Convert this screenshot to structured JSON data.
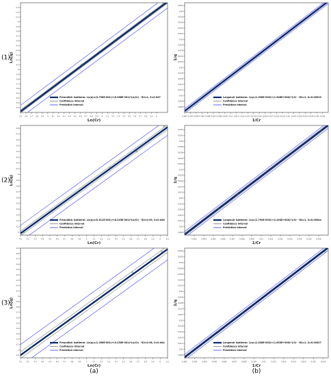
{
  "figure": {
    "row_labels": [
      "(1)",
      "(2)",
      "(3)"
    ],
    "col_labels": [
      "(a)",
      "(b)"
    ],
    "legend_confidence": "Confidence interval",
    "legend_prediction": "Prediction interval",
    "colors": {
      "fit": "#0b2a6f",
      "confidence": "#7a7a7a",
      "prediction": "#3a3aff",
      "points": "#3a7a3a",
      "axis": "#333333"
    }
  },
  "chart_data": [
    {
      "type": "line",
      "id": "r1-freundlich",
      "xlabel": "Ln(Cr)",
      "ylabel": "Ln(q)",
      "xlim": [
        3.5,
        6.2
      ],
      "ylim": [
        3.1,
        5.4
      ],
      "xticks": [
        3.5,
        3.6,
        3.7,
        3.8,
        3.9,
        4.0,
        4.1,
        4.2,
        4.3,
        4.4,
        4.5,
        4.6,
        4.7,
        4.8,
        4.9,
        5.0,
        5.1,
        5.2,
        5.3,
        5.4,
        5.5,
        5.6,
        5.7,
        5.8,
        5.9,
        6.0
      ],
      "xtick_labels": [
        "3.5",
        "3.6",
        "3.7",
        "3.8",
        "3.9",
        "4",
        "4.1",
        "4.2",
        "4.3",
        "4.4",
        "4.5",
        "4.6",
        "4.7",
        "4.8",
        "4.9",
        "5",
        "5.1",
        "5.2",
        "5.3",
        "5.4",
        "5.5",
        "5.6",
        "5.7",
        "5.8",
        "5.9",
        "6"
      ],
      "yticks": [
        3.2,
        3.3,
        3.4,
        3.5,
        3.6,
        3.7,
        3.8,
        3.9,
        4.0,
        4.1,
        4.2,
        4.3,
        4.4,
        4.5,
        4.6,
        4.7,
        4.8,
        4.9,
        5.0,
        5.1,
        5.2,
        5.3
      ],
      "ytick_labels": [
        "3.2",
        "3.3",
        "3.4",
        "3.5",
        "3.6",
        "3.7",
        "3.8",
        "3.9",
        "4",
        "4.1",
        "4.2",
        "4.3",
        "4.4",
        "4.5",
        "4.6",
        "4.7",
        "4.8",
        "4.9",
        "5",
        "5.1",
        "5.2",
        "5.3"
      ],
      "fit": {
        "x": [
          3.5,
          6.2
        ],
        "y": [
          3.12,
          5.42
        ]
      },
      "confidence_offset": 0.03,
      "prediction_offset": 0.13,
      "points": {
        "x": [
          3.62,
          4.62,
          5.22,
          5.88,
          6.12
        ],
        "y": [
          3.22,
          4.1,
          4.6,
          5.17,
          5.38
        ]
      },
      "legend_fit": "Freundlich Isotherm: Ln(q)=(3.796E-001)+(8.368E-001)*Ln(Cr) - R2=1, S=0.047"
    },
    {
      "type": "line",
      "id": "r1-langmuir",
      "xlabel": "1/Cr",
      "ylabel": "1/q",
      "xlim": [
        0.002,
        0.027
      ],
      "ylim": [
        0.004,
        0.043
      ],
      "xticks": [
        0.002,
        0.003,
        0.004,
        0.005,
        0.006,
        0.007,
        0.008,
        0.009,
        0.01,
        0.011,
        0.012,
        0.013,
        0.014,
        0.015,
        0.016,
        0.017,
        0.018,
        0.019,
        0.02,
        0.021,
        0.022,
        0.023,
        0.024,
        0.025,
        0.026
      ],
      "xtick_labels": [
        "0.002",
        "0.003",
        "0.004",
        "0.005",
        "0.006",
        "0.007",
        "0.008",
        "0.009",
        "0.01",
        "0.011",
        "0.012",
        "0.013",
        "0.014",
        "0.015",
        "0.016",
        "0.017",
        "0.018",
        "0.019",
        "0.02",
        "0.021",
        "0.022",
        "0.023",
        "0.024",
        "0.025",
        "0.026"
      ],
      "yticks": [
        0.006,
        0.008,
        0.01,
        0.012,
        0.014,
        0.016,
        0.018,
        0.02,
        0.022,
        0.024,
        0.026,
        0.028,
        0.03,
        0.032,
        0.034,
        0.036,
        0.038,
        0.04,
        0.042
      ],
      "ytick_labels": [
        "0.006",
        "0.008",
        "0.01",
        "0.012",
        "0.014",
        "0.016",
        "0.018",
        "0.02",
        "0.022",
        "0.024",
        "0.026",
        "0.028",
        "0.03",
        "0.032",
        "0.034",
        "0.036",
        "0.038",
        "0.04",
        "0.042"
      ],
      "fit": {
        "x": [
          0.002,
          0.027
        ],
        "y": [
          0.0045,
          0.0435
        ]
      },
      "confidence_offset": 0.0003,
      "prediction_offset": 0.0008,
      "points": {
        "x": [
          0.0045,
          0.0085,
          0.0185,
          0.0255
        ],
        "y": [
          0.0085,
          0.0147,
          0.0302,
          0.0412
        ]
      },
      "legend_fit": "Langmuir Isotherm: 1/q=(1.998E-003)+(1.548E+000)*1/Cr - R2=1, S=0.00029"
    },
    {
      "type": "line",
      "id": "r2-freundlich",
      "xlabel": "Ln(Cr)",
      "ylabel": "Ln(q)",
      "xlim": [
        4.1,
        6.1
      ],
      "ylim": [
        2.95,
        4.85
      ],
      "xticks": [
        4.1,
        4.2,
        4.3,
        4.4,
        4.5,
        4.6,
        4.7,
        4.8,
        4.9,
        5.0,
        5.1,
        5.2,
        5.3,
        5.4,
        5.5,
        5.6,
        5.7,
        5.8,
        5.9,
        6.0,
        6.1
      ],
      "xtick_labels": [
        "4.1",
        "4.2",
        "4.3",
        "4.4",
        "4.5",
        "4.6",
        "4.7",
        "4.8",
        "4.9",
        "5",
        "5.1",
        "5.2",
        "5.3",
        "5.4",
        "5.5",
        "5.6",
        "5.7",
        "5.8",
        "5.9",
        "6",
        "6.1"
      ],
      "yticks": [
        3.0,
        3.1,
        3.2,
        3.3,
        3.4,
        3.5,
        3.6,
        3.7,
        3.8,
        3.9,
        4.0,
        4.1,
        4.2,
        4.3,
        4.4,
        4.5,
        4.6,
        4.7,
        4.8
      ],
      "ytick_labels": [
        "3",
        "3.1",
        "3.2",
        "3.3",
        "3.4",
        "3.5",
        "3.6",
        "3.7",
        "3.8",
        "3.9",
        "4",
        "4.1",
        "4.2",
        "4.3",
        "4.4",
        "4.5",
        "4.6",
        "4.7",
        "4.8"
      ],
      "fit": {
        "x": [
          4.1,
          6.1
        ],
        "y": [
          2.98,
          4.82
        ]
      },
      "confidence_offset": 0.04,
      "prediction_offset": 0.14,
      "points": {
        "x": [
          4.15,
          4.88,
          5.32,
          5.68,
          6.05
        ],
        "y": [
          3.0,
          3.7,
          4.12,
          4.4,
          4.83
        ]
      },
      "legend_fit": "Freundlich Isotherm: Ln(q)=(5.511E-001)+(8.243E-001)*Ln(Cr) - R2=0.99, S=0.046"
    },
    {
      "type": "line",
      "id": "r2-langmuir",
      "xlabel": "1/Cr",
      "ylabel": "1/q",
      "xlim": [
        0.002,
        0.017
      ],
      "ylim": [
        0.007,
        0.0455
      ],
      "xticks": [
        0.003,
        0.004,
        0.005,
        0.006,
        0.007,
        0.008,
        0.009,
        0.01,
        0.011,
        0.012,
        0.013,
        0.014,
        0.015,
        0.016
      ],
      "xtick_labels": [
        "0.003",
        "0.004",
        "0.005",
        "0.006",
        "0.007",
        "0.008",
        "0.009",
        "0.01",
        "0.011",
        "0.012",
        "0.013",
        "0.014",
        "0.015",
        "0.016"
      ],
      "yticks": [
        0.008,
        0.01,
        0.012,
        0.014,
        0.016,
        0.018,
        0.02,
        0.022,
        0.024,
        0.026,
        0.028,
        0.03,
        0.032,
        0.034,
        0.036,
        0.038,
        0.04,
        0.042,
        0.044
      ],
      "ytick_labels": [
        "0.008",
        "0.01",
        "0.012",
        "0.014",
        "0.016",
        "0.018",
        "0.02",
        "0.022",
        "0.024",
        "0.026",
        "0.028",
        "0.03",
        "0.032",
        "0.034",
        "0.036",
        "0.038",
        "0.04",
        "0.042",
        "0.044"
      ],
      "fit": {
        "x": [
          0.002,
          0.017
        ],
        "y": [
          0.0072,
          0.0456
        ]
      },
      "confidence_offset": 0.0005,
      "prediction_offset": 0.0011,
      "points": {
        "x": [
          0.0024,
          0.0055,
          0.0075,
          0.0162
        ],
        "y": [
          0.0084,
          0.0162,
          0.0213,
          0.0435
        ]
      },
      "legend_fit": "Langmuir Isotherm: 1/q=(1.790E-003)+(2.254E+000)*1/Cr - R2=1, S=0.00044"
    },
    {
      "type": "line",
      "id": "r3-freundlich",
      "xlabel": "Ln(Cr)",
      "ylabel": "Ln(q)",
      "xlim": [
        4.1,
        6.1
      ],
      "ylim": [
        2.85,
        4.9
      ],
      "xticks": [
        4.1,
        4.2,
        4.3,
        4.4,
        4.5,
        4.6,
        4.7,
        4.8,
        4.9,
        5.0,
        5.1,
        5.2,
        5.3,
        5.4,
        5.5,
        5.6,
        5.7,
        5.8,
        5.9,
        6.0,
        6.1
      ],
      "xtick_labels": [
        "4.1",
        "4.2",
        "4.3",
        "4.4",
        "4.5",
        "4.6",
        "4.7",
        "4.8",
        "4.9",
        "5",
        "5.1",
        "5.2",
        "5.3",
        "5.4",
        "5.5",
        "5.6",
        "5.7",
        "5.8",
        "5.9",
        "6",
        "6.1"
      ],
      "yticks": [
        2.9,
        3.0,
        3.1,
        3.2,
        3.3,
        3.4,
        3.5,
        3.6,
        3.7,
        3.8,
        3.9,
        4.0,
        4.1,
        4.2,
        4.3,
        4.4,
        4.5,
        4.6,
        4.7,
        4.8,
        4.9
      ],
      "ytick_labels": [
        "2.9",
        "3",
        "3.1",
        "3.2",
        "3.3",
        "3.4",
        "3.5",
        "3.6",
        "3.7",
        "3.8",
        "3.9",
        "4",
        "4.1",
        "4.2",
        "4.3",
        "4.4",
        "4.5",
        "4.6",
        "4.7",
        "4.8",
        "4.9"
      ],
      "fit": {
        "x": [
          4.1,
          6.1
        ],
        "y": [
          2.9,
          4.88
        ]
      },
      "confidence_offset": 0.06,
      "prediction_offset": 0.2,
      "points": {
        "x": [
          4.25,
          5.2,
          5.62,
          5.88,
          6.02
        ],
        "y": [
          3.05,
          3.98,
          4.45,
          4.68,
          4.84
        ]
      },
      "legend_fit": "Freundlich Isotherm: Ln(q)=(1.396E-001)+(9.230E-001)*Ln(Cr) - R2=0.98, S=0.044"
    },
    {
      "type": "line",
      "id": "r3-langmuir",
      "xlabel": "1/Cr",
      "ylabel": "1/q",
      "xlim": [
        0.002,
        0.0165
      ],
      "ylim": [
        0.007,
        0.045
      ],
      "xticks": [
        0.002,
        0.003,
        0.004,
        0.005,
        0.006,
        0.007,
        0.008,
        0.009,
        0.01,
        0.011,
        0.012,
        0.013,
        0.014,
        0.015,
        0.016
      ],
      "xtick_labels": [
        "0.002",
        "0.003",
        "0.004",
        "0.005",
        "0.006",
        "0.007",
        "0.008",
        "0.009",
        "0.01",
        "0.011",
        "0.012",
        "0.013",
        "0.014",
        "0.015",
        "0.016"
      ],
      "yticks": [
        0.008,
        0.01,
        0.012,
        0.014,
        0.016,
        0.018,
        0.02,
        0.022,
        0.024,
        0.026,
        0.028,
        0.03,
        0.032,
        0.034,
        0.036,
        0.038,
        0.04,
        0.042,
        0.044
      ],
      "ytick_labels": [
        "0.008",
        "0.01",
        "0.012",
        "0.014",
        "0.016",
        "0.018",
        "0.02",
        "0.022",
        "0.024",
        "0.026",
        "0.028",
        "0.03",
        "0.032",
        "0.034",
        "0.036",
        "0.038",
        "0.04",
        "0.042",
        "0.044"
      ],
      "fit": {
        "x": [
          0.002,
          0.0165
        ],
        "y": [
          0.0072,
          0.0452
        ]
      },
      "confidence_offset": 0.0004,
      "prediction_offset": 0.001,
      "points": {
        "x": [
          0.0026,
          0.0055,
          0.0079,
          0.0162
        ],
        "y": [
          0.0088,
          0.0162,
          0.0225,
          0.0437
        ]
      },
      "legend_fit": "Langmuir Isotherm: 1/q=(1.456E-002)+(1.633E+000)*1/Cr - R2=1, S=0.00027"
    }
  ]
}
